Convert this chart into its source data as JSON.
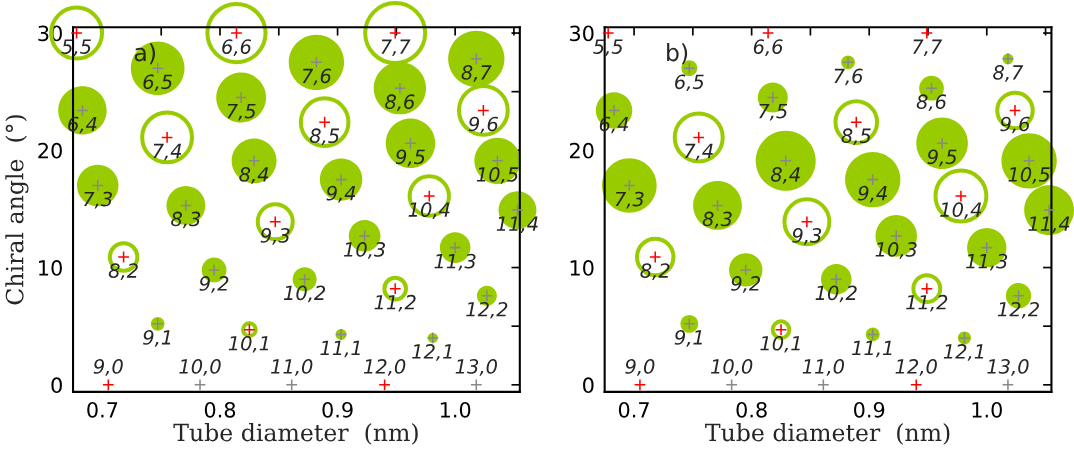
{
  "chart_data": [
    {
      "type": "bubble",
      "xlabel": "Tube diameter  (nm)",
      "ylabel": "Chiral angle  (°)",
      "xlim": [
        0.675,
        1.055
      ],
      "ylim": [
        -0.6,
        30.5
      ],
      "xticks": [
        {
          "value": 0.7,
          "label": "0.7"
        },
        {
          "value": 0.75,
          "label": null
        },
        {
          "value": 0.8,
          "label": "0.8"
        },
        {
          "value": 0.85,
          "label": null
        },
        {
          "value": 0.9,
          "label": "0.9"
        },
        {
          "value": 0.95,
          "label": null
        },
        {
          "value": 1.0,
          "label": "1.0"
        },
        {
          "value": 1.05,
          "label": null
        }
      ],
      "yticks": [
        0,
        {
          "value": 5,
          "label": null
        },
        10,
        {
          "value": 15,
          "label": null
        },
        20,
        {
          "value": 25,
          "label": null
        },
        30
      ],
      "series": [
        {
          "color": "#99cc00",
          "x": [
            0.683,
            0.747,
            0.696,
            0.818,
            0.882,
            0.771,
            0.829,
            0.953,
            1.018,
            0.747,
            0.795,
            0.903,
            0.962,
            0.872,
            0.923,
            1.036,
            0.903,
            1.0,
            1.053,
            0.981,
            1.027
          ],
          "values": [
            23.4,
            27.0,
            17.0,
            24.5,
            27.5,
            15.3,
            19.1,
            25.3,
            27.8,
            5.2,
            9.8,
            17.5,
            20.6,
            9.0,
            12.7,
            19.1,
            4.3,
            11.7,
            14.9,
            4.0,
            7.6
          ],
          "sizes": [
            0.65,
            0.8,
            0.48,
            0.69,
            0.85,
            0.42,
            0.56,
            0.76,
            0.88,
            0.052,
            0.17,
            0.5,
            0.68,
            0.16,
            0.28,
            0.59,
            0.033,
            0.26,
            0.4,
            0.028,
            0.11
          ]
        },
        {
          "color": "#99cc00",
          "line_style": "solid",
          "x": [
            0.678,
            0.814,
            0.755,
            0.949,
            0.718,
            0.889,
            0.847,
            1.024,
            0.825,
            0.978,
            0.949
          ],
          "values": [
            30.0,
            30.0,
            21.1,
            30.0,
            10.9,
            22.4,
            13.9,
            23.4,
            4.7,
            16.1,
            8.2
          ],
          "sizes": [
            0.72,
            0.94,
            0.69,
            1,
            0.21,
            0.63,
            0.34,
            0.66,
            0.045,
            0.43,
            0.13
          ]
        },
        {
          "type": "scatter",
          "marker": "cross",
          "color": "#ff0000",
          "x": [
            0.678,
            0.814,
            0.755,
            0.949,
            0.718,
            0.889,
            0.847,
            1.024,
            0.825,
            0.978,
            0.949,
            0.705,
            0.94
          ],
          "values": [
            30.0,
            30.0,
            21.1,
            30.0,
            10.9,
            22.4,
            13.9,
            23.4,
            4.7,
            16.1,
            8.2,
            0,
            0
          ]
        },
        {
          "type": "scatter",
          "marker": "cross",
          "color": "#888888",
          "x": [
            0.683,
            0.747,
            0.696,
            0.818,
            0.882,
            0.771,
            0.829,
            0.953,
            1.018,
            0.747,
            0.795,
            0.903,
            0.962,
            0.872,
            0.923,
            1.036,
            0.903,
            1.0,
            1.053,
            0.981,
            1.027,
            0.783,
            0.861,
            1.018
          ],
          "values": [
            23.4,
            27.0,
            17.0,
            24.5,
            27.5,
            15.3,
            19.1,
            25.3,
            27.8,
            5.2,
            9.8,
            17.5,
            20.6,
            9.0,
            12.7,
            19.1,
            4.3,
            11.7,
            14.9,
            4.0,
            7.6,
            0,
            0,
            0
          ]
        }
      ],
      "annotations": [
        "a)",
        {
          "text": "5,5",
          "x": 0.678,
          "y": 30.0
        },
        {
          "text": "6,6",
          "x": 0.814,
          "y": 30.0
        },
        {
          "text": "7,7",
          "x": 0.949,
          "y": 30.0
        },
        {
          "text": "6,4",
          "x": 0.683,
          "y": 23.4
        },
        {
          "text": "6,5",
          "x": 0.747,
          "y": 27.0
        },
        {
          "text": "7,3",
          "x": 0.696,
          "y": 17.0
        },
        {
          "text": "7,4",
          "x": 0.755,
          "y": 21.1
        },
        {
          "text": "7,5",
          "x": 0.818,
          "y": 24.5
        },
        {
          "text": "7,6",
          "x": 0.882,
          "y": 27.5
        },
        {
          "text": "8,2",
          "x": 0.718,
          "y": 10.9
        },
        {
          "text": "8,3",
          "x": 0.771,
          "y": 15.3
        },
        {
          "text": "8,4",
          "x": 0.829,
          "y": 19.1
        },
        {
          "text": "8,5",
          "x": 0.889,
          "y": 22.4
        },
        {
          "text": "8,6",
          "x": 0.953,
          "y": 25.3
        },
        {
          "text": "8,7",
          "x": 1.018,
          "y": 27.8
        },
        {
          "text": "9,0",
          "x": 0.705,
          "y": 0
        },
        {
          "text": "9,1",
          "x": 0.747,
          "y": 5.2
        },
        {
          "text": "9,2",
          "x": 0.795,
          "y": 9.8
        },
        {
          "text": "9,3",
          "x": 0.847,
          "y": 13.9
        },
        {
          "text": "9,4",
          "x": 0.903,
          "y": 17.5
        },
        {
          "text": "9,5",
          "x": 0.962,
          "y": 20.6
        },
        {
          "text": "9,6",
          "x": 1.024,
          "y": 23.4
        },
        {
          "text": "10,0",
          "x": 0.783,
          "y": 0
        },
        {
          "text": "10,1",
          "x": 0.825,
          "y": 4.7
        },
        {
          "text": "10,2",
          "x": 0.872,
          "y": 9.0
        },
        {
          "text": "10,3",
          "x": 0.923,
          "y": 12.7
        },
        {
          "text": "10,4",
          "x": 0.978,
          "y": 16.1
        },
        {
          "text": "10,5",
          "x": 1.036,
          "y": 19.1
        },
        {
          "text": "11,0",
          "x": 0.861,
          "y": 0
        },
        {
          "text": "11,1",
          "x": 0.903,
          "y": 4.3
        },
        {
          "text": "11,2",
          "x": 0.949,
          "y": 8.2
        },
        {
          "text": "11,3",
          "x": 1.0,
          "y": 11.7
        },
        {
          "text": "11,4",
          "x": 1.053,
          "y": 14.9
        },
        {
          "text": "12,0",
          "x": 0.94,
          "y": 0
        },
        {
          "text": "12,1",
          "x": 0.981,
          "y": 4.0
        },
        {
          "text": "12,2",
          "x": 1.027,
          "y": 7.6
        },
        {
          "text": "13,0",
          "x": 1.018,
          "y": 0
        }
      ]
    },
    {
      "type": "bubble",
      "xlabel": "Tube diameter  (nm)",
      "xlim": [
        0.675,
        1.055
      ],
      "ylim": [
        -0.6,
        30.5
      ],
      "xticks": [
        {
          "value": 0.7,
          "label": "0.7"
        },
        {
          "value": 0.75,
          "label": null
        },
        {
          "value": 0.8,
          "label": "0.8"
        },
        {
          "value": 0.85,
          "label": null
        },
        {
          "value": 0.9,
          "label": "0.9"
        },
        {
          "value": 0.95,
          "label": null
        },
        {
          "value": 1.0,
          "label": "1.0"
        },
        {
          "value": 1.05,
          "label": null
        }
      ],
      "yticks": [
        0,
        {
          "value": 5,
          "label": null
        },
        10,
        {
          "value": 15,
          "label": null
        },
        20,
        {
          "value": 25,
          "label": null
        },
        30
      ],
      "series": [
        {
          "color": "#99cc00",
          "x": [
            0.683,
            0.747,
            0.696,
            0.818,
            0.882,
            0.771,
            0.829,
            0.953,
            1.018,
            0.747,
            0.795,
            0.903,
            0.962,
            0.872,
            0.923,
            1.036,
            0.903,
            1.0,
            1.053,
            0.981,
            1.027
          ],
          "values": [
            23.4,
            27.0,
            17.0,
            24.5,
            27.5,
            15.3,
            19.1,
            25.3,
            27.8,
            5.2,
            9.8,
            17.5,
            20.6,
            9.0,
            12.7,
            19.1,
            4.3,
            11.7,
            14.9,
            4.0,
            7.6
          ],
          "sizes": [
            0.37,
            0.07,
            0.83,
            0.25,
            0.053,
            0.66,
            1,
            0.17,
            0.032,
            0.088,
            0.31,
            0.85,
            0.74,
            0.26,
            0.48,
            0.85,
            0.053,
            0.43,
            0.69,
            0.047,
            0.18
          ]
        },
        {
          "color": "#99cc00",
          "line_style": "solid",
          "x": [
            0.755,
            0.718,
            0.889,
            0.847,
            1.024,
            0.825,
            0.978,
            0.949
          ],
          "values": [
            21.1,
            10.9,
            22.4,
            13.9,
            23.4,
            4.7,
            16.1,
            8.2
          ],
          "sizes": [
            0.64,
            0.37,
            0.48,
            0.56,
            0.35,
            0.077,
            0.72,
            0.2
          ]
        },
        {
          "type": "scatter",
          "marker": "cross",
          "color": "#ff0000",
          "x": [
            0.678,
            0.814,
            0.755,
            0.949,
            0.718,
            0.889,
            0.847,
            1.024,
            0.825,
            0.978,
            0.949,
            0.705,
            0.94
          ],
          "values": [
            30.0,
            30.0,
            21.1,
            30.0,
            10.9,
            22.4,
            13.9,
            23.4,
            4.7,
            16.1,
            8.2,
            0,
            0
          ]
        },
        {
          "type": "scatter",
          "marker": "cross",
          "color": "#888888",
          "x": [
            0.683,
            0.747,
            0.696,
            0.818,
            0.882,
            0.771,
            0.829,
            0.953,
            1.018,
            0.747,
            0.795,
            0.903,
            0.962,
            0.872,
            0.923,
            1.036,
            0.903,
            1.0,
            1.053,
            0.981,
            1.027,
            0.783,
            0.861,
            1.018
          ],
          "values": [
            23.4,
            27.0,
            17.0,
            24.5,
            27.5,
            15.3,
            19.1,
            25.3,
            27.8,
            5.2,
            9.8,
            17.5,
            20.6,
            9.0,
            12.7,
            19.1,
            4.3,
            11.7,
            14.9,
            4.0,
            7.6,
            0,
            0,
            0
          ]
        }
      ],
      "annotations": [
        "b)",
        {
          "text": "5,5",
          "x": 0.678,
          "y": 30.0
        },
        {
          "text": "6,6",
          "x": 0.814,
          "y": 30.0
        },
        {
          "text": "7,7",
          "x": 0.949,
          "y": 30.0
        },
        {
          "text": "6,4",
          "x": 0.683,
          "y": 23.4
        },
        {
          "text": "6,5",
          "x": 0.747,
          "y": 27.0
        },
        {
          "text": "7,3",
          "x": 0.696,
          "y": 17.0
        },
        {
          "text": "7,4",
          "x": 0.755,
          "y": 21.1
        },
        {
          "text": "7,5",
          "x": 0.818,
          "y": 24.5
        },
        {
          "text": "7,6",
          "x": 0.882,
          "y": 27.5
        },
        {
          "text": "8,2",
          "x": 0.718,
          "y": 10.9
        },
        {
          "text": "8,3",
          "x": 0.771,
          "y": 15.3
        },
        {
          "text": "8,4",
          "x": 0.829,
          "y": 19.1
        },
        {
          "text": "8,5",
          "x": 0.889,
          "y": 22.4
        },
        {
          "text": "8,6",
          "x": 0.953,
          "y": 25.3
        },
        {
          "text": "8,7",
          "x": 1.018,
          "y": 27.8
        },
        {
          "text": "9,0",
          "x": 0.705,
          "y": 0
        },
        {
          "text": "9,1",
          "x": 0.747,
          "y": 5.2
        },
        {
          "text": "9,2",
          "x": 0.795,
          "y": 9.8
        },
        {
          "text": "9,3",
          "x": 0.847,
          "y": 13.9
        },
        {
          "text": "9,4",
          "x": 0.903,
          "y": 17.5
        },
        {
          "text": "9,5",
          "x": 0.962,
          "y": 20.6
        },
        {
          "text": "9,6",
          "x": 1.024,
          "y": 23.4
        },
        {
          "text": "10,0",
          "x": 0.783,
          "y": 0
        },
        {
          "text": "10,1",
          "x": 0.825,
          "y": 4.7
        },
        {
          "text": "10,2",
          "x": 0.872,
          "y": 9.0
        },
        {
          "text": "10,3",
          "x": 0.923,
          "y": 12.7
        },
        {
          "text": "10,4",
          "x": 0.978,
          "y": 16.1
        },
        {
          "text": "10,5",
          "x": 1.036,
          "y": 19.1
        },
        {
          "text": "11,0",
          "x": 0.861,
          "y": 0
        },
        {
          "text": "11,1",
          "x": 0.903,
          "y": 4.3
        },
        {
          "text": "11,2",
          "x": 0.949,
          "y": 8.2
        },
        {
          "text": "11,3",
          "x": 1.0,
          "y": 11.7
        },
        {
          "text": "11,4",
          "x": 1.053,
          "y": 14.9
        },
        {
          "text": "12,0",
          "x": 0.94,
          "y": 0
        },
        {
          "text": "12,1",
          "x": 0.981,
          "y": 4.0
        },
        {
          "text": "12,2",
          "x": 1.027,
          "y": 7.6
        },
        {
          "text": "13,0",
          "x": 1.018,
          "y": 0
        }
      ]
    }
  ]
}
